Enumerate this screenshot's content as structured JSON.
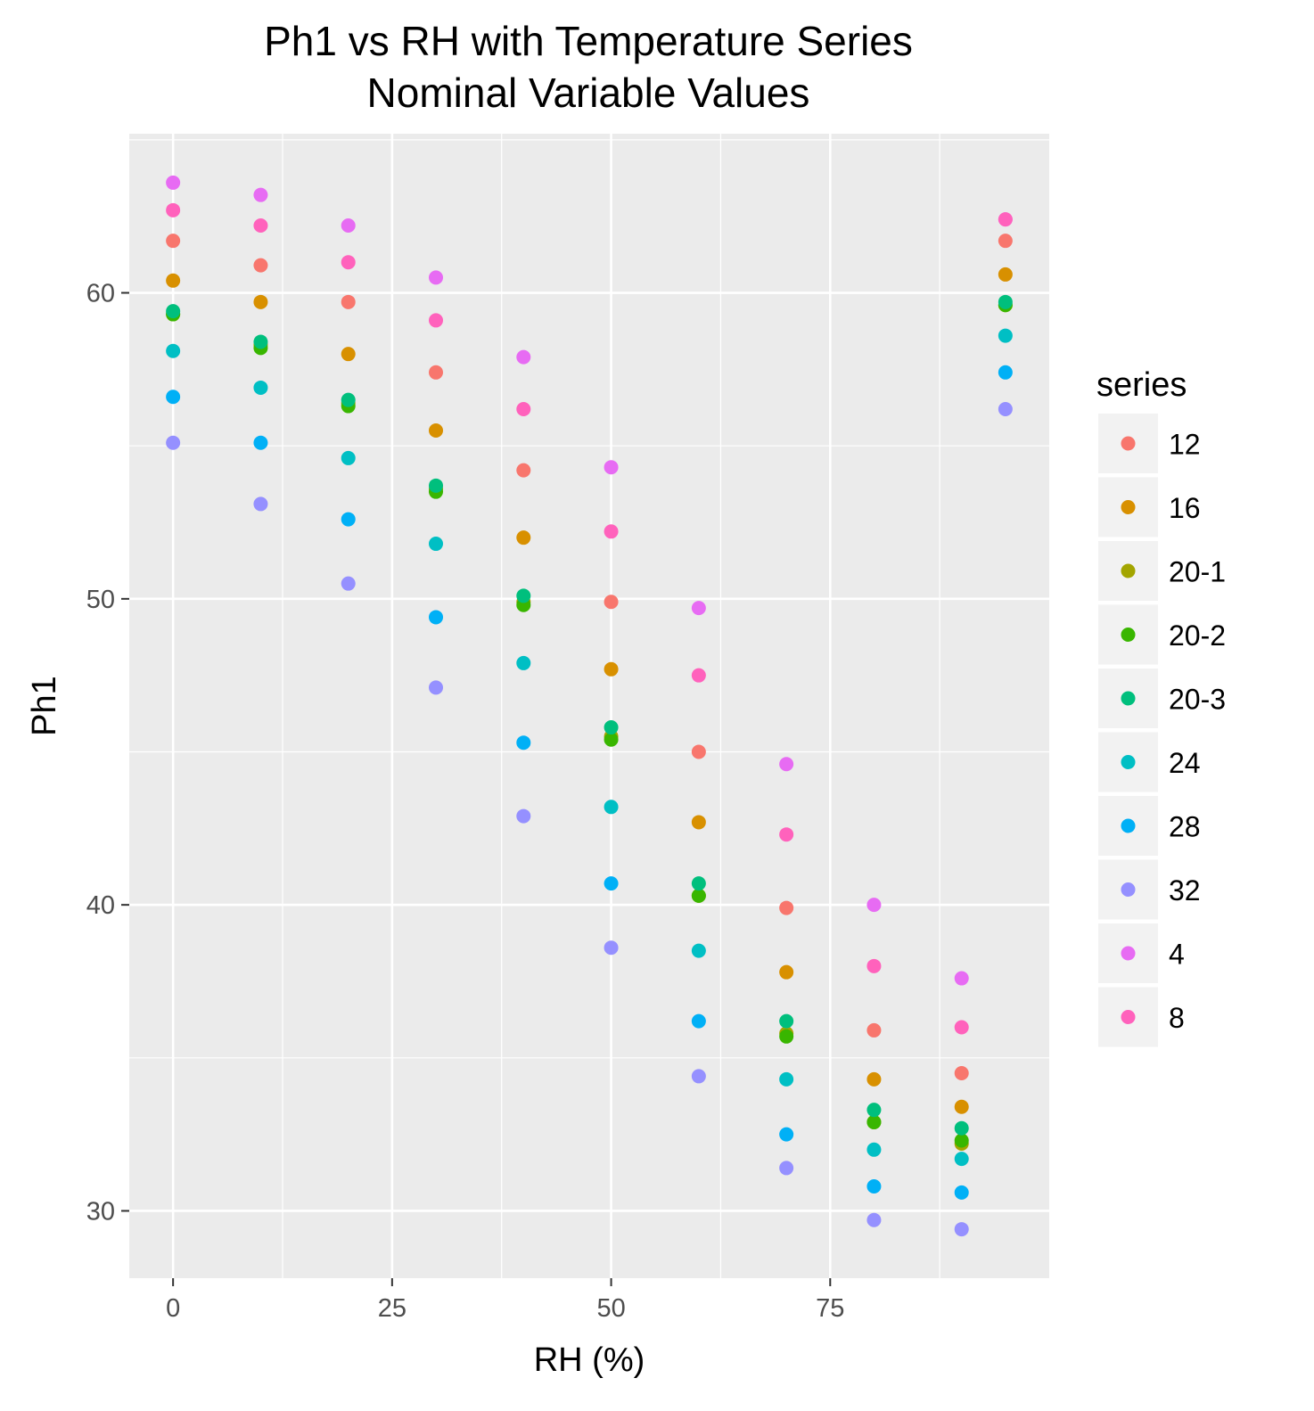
{
  "chart_data": {
    "type": "scatter",
    "title": "Ph1 vs RH with Temperature Series",
    "subtitle": "Nominal Variable Values",
    "xlabel": "RH (%)",
    "ylabel": "Ph1",
    "xlim": [
      -5,
      100
    ],
    "ylim": [
      27.8,
      65.2
    ],
    "x_ticks": [
      0,
      25,
      50,
      75
    ],
    "y_ticks": [
      30,
      40,
      50,
      60
    ],
    "grid": true,
    "legend": {
      "title": "series",
      "position": "right"
    },
    "x": [
      0,
      10,
      20,
      30,
      40,
      50,
      60,
      70,
      80,
      90,
      95
    ],
    "series": [
      {
        "name": "12",
        "color": "#F8766D",
        "values": [
          61.7,
          60.9,
          59.7,
          57.4,
          54.2,
          49.9,
          45.0,
          39.9,
          35.9,
          34.5,
          61.7
        ]
      },
      {
        "name": "16",
        "color": "#D89000",
        "values": [
          60.4,
          59.7,
          58.0,
          55.5,
          52.0,
          47.7,
          42.7,
          37.8,
          34.3,
          33.4,
          60.6
        ]
      },
      {
        "name": "20-1",
        "color": "#A3A500",
        "values": [
          59.3,
          58.3,
          56.4,
          53.6,
          49.9,
          45.5,
          40.3,
          35.8,
          32.9,
          32.2,
          59.6
        ]
      },
      {
        "name": "20-2",
        "color": "#39B600",
        "values": [
          59.3,
          58.2,
          56.3,
          53.5,
          49.8,
          45.4,
          40.3,
          35.7,
          32.9,
          32.3,
          59.6
        ]
      },
      {
        "name": "20-3",
        "color": "#00BF7D",
        "values": [
          59.4,
          58.4,
          56.5,
          53.7,
          50.1,
          45.8,
          40.7,
          36.2,
          33.3,
          32.7,
          59.7
        ]
      },
      {
        "name": "24",
        "color": "#00BFC4",
        "values": [
          58.1,
          56.9,
          54.6,
          51.8,
          47.9,
          43.2,
          38.5,
          34.3,
          32.0,
          31.7,
          58.6
        ]
      },
      {
        "name": "28",
        "color": "#00B0F6",
        "values": [
          56.6,
          55.1,
          52.6,
          49.4,
          45.3,
          40.7,
          36.2,
          32.5,
          30.8,
          30.6,
          57.4
        ]
      },
      {
        "name": "32",
        "color": "#9590FF",
        "values": [
          55.1,
          53.1,
          50.5,
          47.1,
          42.9,
          38.6,
          34.4,
          31.4,
          29.7,
          29.4,
          56.2
        ]
      },
      {
        "name": "4",
        "color": "#E76BF3",
        "values": [
          63.6,
          63.2,
          62.2,
          60.5,
          57.9,
          54.3,
          49.7,
          44.6,
          40.0,
          37.6,
          62.4
        ]
      },
      {
        "name": "8",
        "color": "#FF62BC",
        "values": [
          62.7,
          62.2,
          61.0,
          59.1,
          56.2,
          52.2,
          47.5,
          42.3,
          38.0,
          36.0,
          62.4
        ]
      }
    ]
  }
}
